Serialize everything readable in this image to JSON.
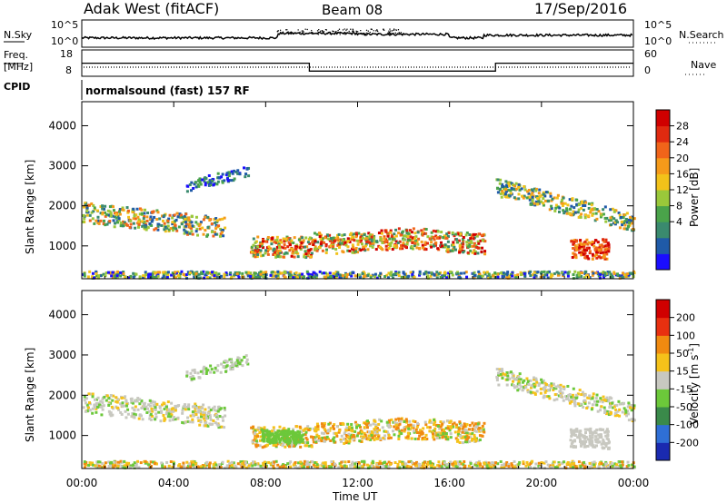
{
  "header": {
    "station": "Adak West (fitACF)",
    "beam": "Beam 08",
    "date": "17/Sep/2016"
  },
  "panels": {
    "nsky_label": "N.Sky",
    "nsearch_label": "N.Search",
    "freq_label_line1": "Freq.",
    "freq_label_line2": "[MHz]",
    "nave_label": "Nave",
    "cpid_label": "CPID",
    "cpid_value": "normalsound (fast) 157 RF",
    "noise_ticks_left": [
      "10^5",
      "10^0"
    ],
    "noise_ticks_right": [
      "10^5",
      "10^0"
    ],
    "freq_ticks": [
      "18",
      "8"
    ],
    "nave_ticks": [
      "60",
      "0"
    ]
  },
  "chart_data": [
    {
      "type": "heatmap",
      "name": "power",
      "ylabel": "Slant Range [km]",
      "ylim": [
        180,
        4600
      ],
      "yticks": [
        "4000",
        "3000",
        "2000",
        "1000"
      ],
      "ytick_values": [
        4000,
        3000,
        2000,
        1000
      ],
      "colorbar": {
        "label": "Power [dB]",
        "ticks": [
          "28",
          "24",
          "20",
          "16",
          "12",
          "8",
          "4"
        ],
        "colors": [
          "#1a0dff",
          "#1f5aa8",
          "#3a8a6e",
          "#4aa34a",
          "#9ac83a",
          "#f2c21a",
          "#f59a1a",
          "#f0641a",
          "#e02a10",
          "#d00000"
        ]
      }
    },
    {
      "type": "heatmap",
      "name": "velocity",
      "ylabel": "Slant Range [km]",
      "ylim": [
        180,
        4600
      ],
      "yticks": [
        "4000",
        "3000",
        "2000",
        "1000"
      ],
      "ytick_values": [
        4000,
        3000,
        2000,
        1000
      ],
      "colorbar": {
        "label": "Velocity [m s",
        "label_sup": "-1",
        "label_end": "]",
        "ticks": [
          "200",
          "100",
          "50",
          "15",
          "-15",
          "-50",
          "-100",
          "-200"
        ],
        "colors": [
          "#1a2ab0",
          "#2f6fd6",
          "#3a8a4a",
          "#6cc83a",
          "#c8c8c0",
          "#f5c21a",
          "#f08a10",
          "#e83010",
          "#d00000"
        ]
      }
    }
  ],
  "xaxis": {
    "label": "Time UT",
    "ticks": [
      "00:00",
      "04:00",
      "08:00",
      "12:00",
      "16:00",
      "20:00",
      "00:00"
    ],
    "tick_hours": [
      0,
      4,
      8,
      12,
      16,
      20,
      24
    ]
  },
  "frequency_series": {
    "upper_mhz": [
      [
        0,
        14
      ],
      [
        9.9,
        14
      ],
      [
        9.9,
        11
      ],
      [
        18,
        11
      ],
      [
        18,
        14
      ],
      [
        24,
        14
      ]
    ]
  }
}
